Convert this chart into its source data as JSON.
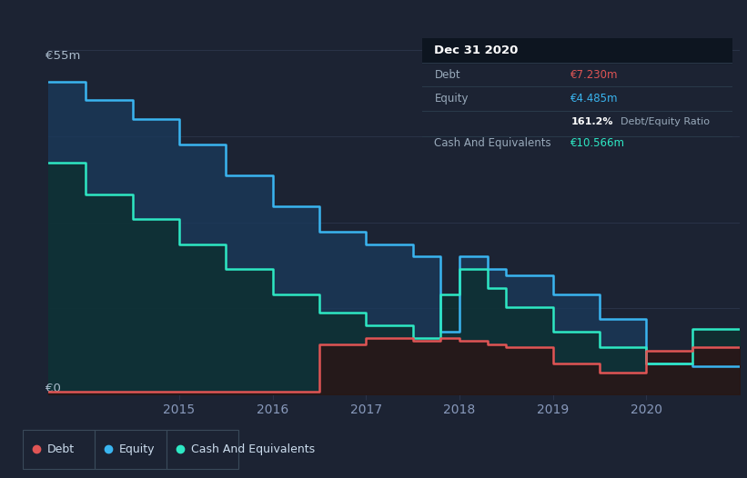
{
  "background_color": "#1c2333",
  "plot_bg_color": "#1c2333",
  "grid_color": "#2a3348",
  "title_box_bg": "#0d1117",
  "title_box": {
    "date": "Dec 31 2020",
    "debt_label": "Debt",
    "debt_value": "€7.230m",
    "equity_label": "Equity",
    "equity_value": "€4.485m",
    "ratio": "161.2%",
    "ratio_label": "Debt/Equity Ratio",
    "cash_label": "Cash And Equivalents",
    "cash_value": "€10.566m"
  },
  "ylabel_top": "€55m",
  "ylabel_bottom": "€0",
  "x_ticks": [
    2015,
    2016,
    2017,
    2018,
    2019,
    2020
  ],
  "ylim": [
    0,
    55
  ],
  "equity_color": "#3ab5f0",
  "cash_color": "#2ee8c4",
  "debt_color": "#e05555",
  "equity_data": {
    "x": [
      2013.6,
      2014.0,
      2014.0,
      2014.5,
      2014.5,
      2015.0,
      2015.0,
      2015.5,
      2015.5,
      2016.0,
      2016.0,
      2016.5,
      2016.5,
      2017.0,
      2017.0,
      2017.5,
      2017.5,
      2017.8,
      2017.8,
      2018.0,
      2018.0,
      2018.3,
      2018.3,
      2018.5,
      2018.5,
      2019.0,
      2019.0,
      2019.5,
      2019.5,
      2020.0,
      2020.0,
      2020.5,
      2020.5,
      2021.0
    ],
    "y": [
      50,
      50,
      47,
      47,
      44,
      44,
      40,
      40,
      35,
      35,
      30,
      30,
      26,
      26,
      24,
      24,
      22,
      22,
      10,
      10,
      22,
      22,
      20,
      20,
      19,
      19,
      16,
      16,
      12,
      12,
      5,
      5,
      4.5,
      4.5
    ]
  },
  "cash_data": {
    "x": [
      2013.6,
      2014.0,
      2014.0,
      2014.5,
      2014.5,
      2015.0,
      2015.0,
      2015.5,
      2015.5,
      2016.0,
      2016.0,
      2016.5,
      2016.5,
      2017.0,
      2017.0,
      2017.5,
      2017.5,
      2017.8,
      2017.8,
      2018.0,
      2018.0,
      2018.3,
      2018.3,
      2018.5,
      2018.5,
      2019.0,
      2019.0,
      2019.5,
      2019.5,
      2020.0,
      2020.0,
      2020.5,
      2020.5,
      2021.0
    ],
    "y": [
      37,
      37,
      32,
      32,
      28,
      28,
      24,
      24,
      20,
      20,
      16,
      16,
      13,
      13,
      11,
      11,
      9,
      9,
      16,
      16,
      20,
      20,
      17,
      17,
      14,
      14,
      10,
      10,
      7.5,
      7.5,
      5,
      5,
      10.5,
      10.5
    ]
  },
  "debt_data": {
    "x": [
      2013.6,
      2016.5,
      2016.5,
      2017.0,
      2017.0,
      2017.5,
      2017.5,
      2017.8,
      2017.8,
      2018.0,
      2018.0,
      2018.3,
      2018.3,
      2018.5,
      2018.5,
      2019.0,
      2019.0,
      2019.5,
      2019.5,
      2020.0,
      2020.0,
      2020.5,
      2020.5,
      2021.0
    ],
    "y": [
      0.5,
      0.5,
      8,
      8,
      9,
      9,
      8.5,
      8.5,
      9,
      9,
      8.5,
      8.5,
      8,
      8,
      7.5,
      7.5,
      5,
      5,
      3.5,
      3.5,
      7,
      7,
      7.5,
      7.5
    ]
  },
  "legend_items": [
    {
      "label": "Debt",
      "color": "#e05555"
    },
    {
      "label": "Equity",
      "color": "#3ab5f0"
    },
    {
      "label": "Cash And Equivalents",
      "color": "#2ee8c4"
    }
  ]
}
